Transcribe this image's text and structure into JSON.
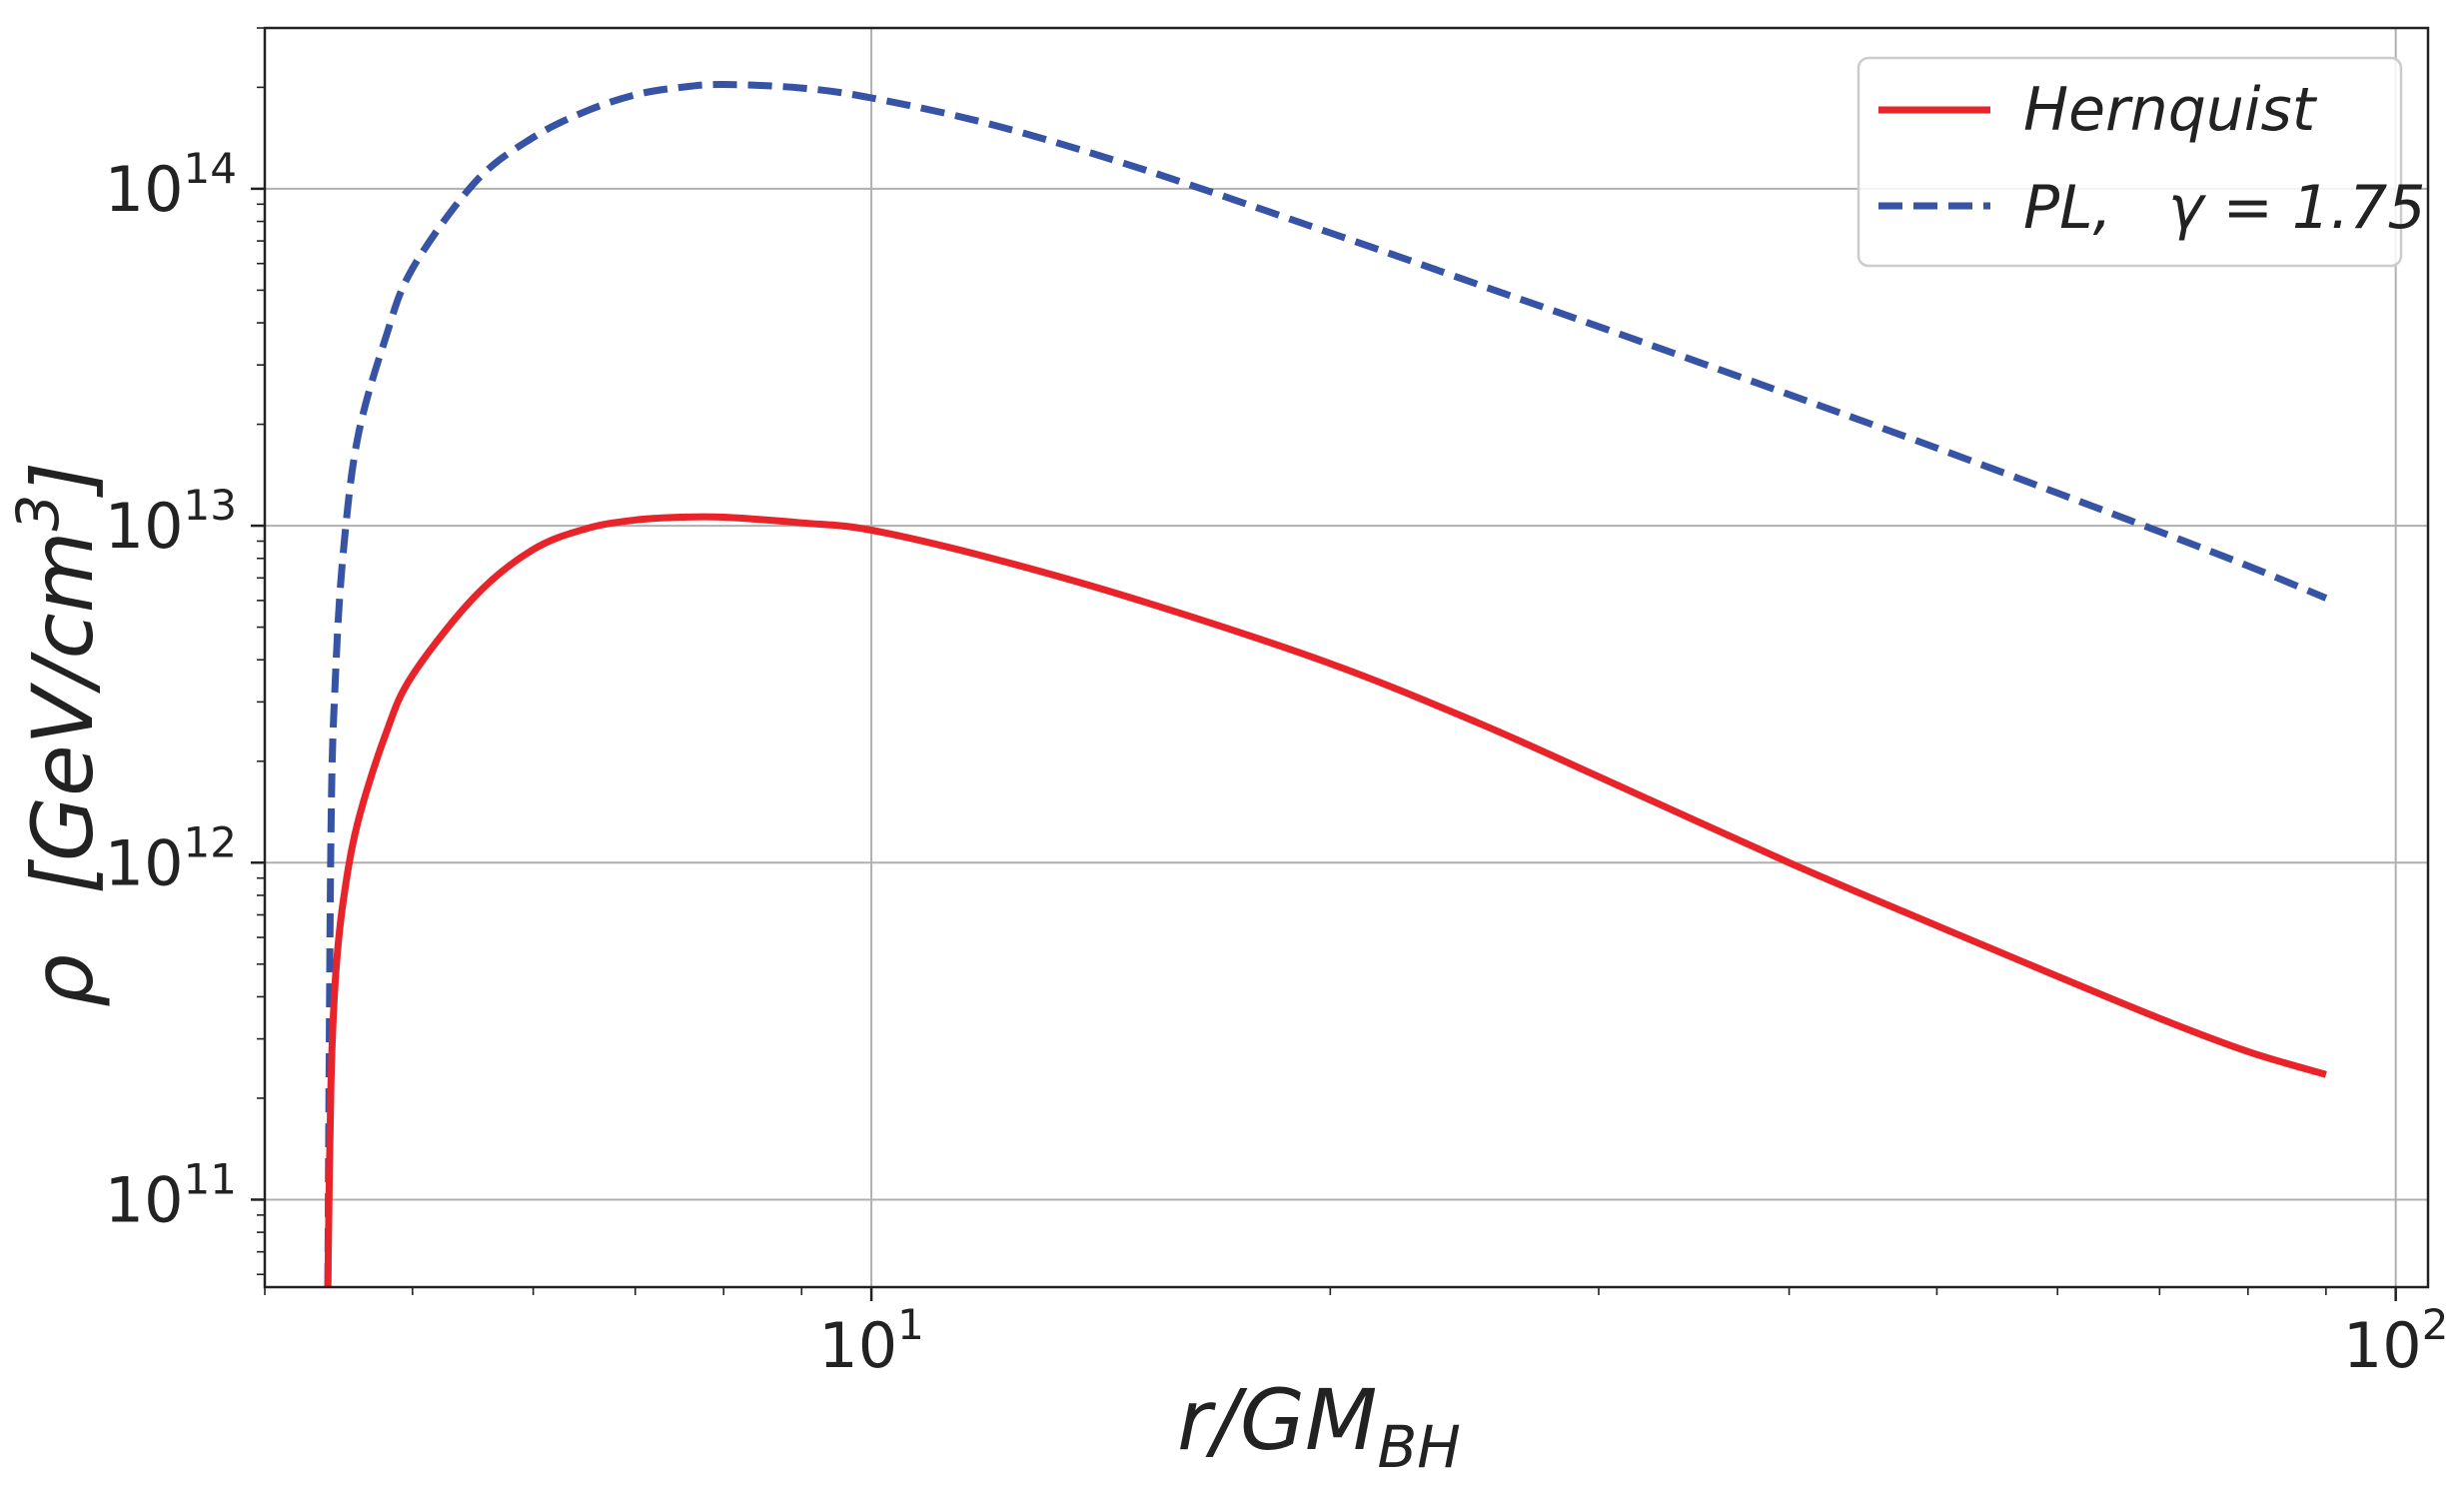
{
  "chart_data": {
    "type": "line",
    "xlabel": {
      "main": "r/GM",
      "sub": "BH"
    },
    "ylabel": {
      "symbol": "ρ",
      "units": "[GeV/cm",
      "units_exp": "3",
      "units_close": "]"
    },
    "xscale": "log",
    "yscale": "log",
    "xlim": [
      4.0,
      105
    ],
    "ylim": [
      55000000000.0,
      300000000000000.0
    ],
    "grid": true,
    "legend_position": "top-right",
    "x_ticks": [
      {
        "value": 10,
        "base": "10",
        "exp": "1"
      },
      {
        "value": 100,
        "base": "10",
        "exp": "2"
      }
    ],
    "y_ticks": [
      {
        "value": 100000000000.0,
        "base": "10",
        "exp": "11"
      },
      {
        "value": 1000000000000.0,
        "base": "10",
        "exp": "12"
      },
      {
        "value": 10000000000000.0,
        "base": "10",
        "exp": "13"
      },
      {
        "value": 100000000000000.0,
        "base": "10",
        "exp": "14"
      }
    ],
    "series": [
      {
        "name": "Hernquist",
        "color": "#e8232a",
        "dash": "solid",
        "x": [
          4.4,
          4.42,
          4.45,
          4.5,
          4.6,
          4.8,
          5.0,
          5.5,
          6.0,
          6.5,
          7.0,
          7.5,
          8.0,
          9.0,
          10,
          12,
          15,
          20,
          25,
          30,
          40,
          50,
          60,
          70,
          80,
          90
        ],
        "y": [
          55000000000.0,
          220000000000.0,
          450000000000.0,
          750000000000.0,
          1300000000000.0,
          2400000000000.0,
          3600000000000.0,
          6200000000000.0,
          8500000000000.0,
          9800000000000.0,
          10400000000000.0,
          10600000000000.0,
          10600000000000.0,
          10200000000000.0,
          9700000000000.0,
          8000000000000.0,
          6000000000000.0,
          3900000000000.0,
          2600000000000.0,
          1800000000000.0,
          1000000000000.0,
          650000000000.0,
          460000000000.0,
          345000000000.0,
          275000000000.0,
          235000000000.0
        ]
      },
      {
        "name": "PL,    γ = 1.75",
        "legend_label": {
          "name": "PL,",
          "gamma": "γ = 1.75"
        },
        "color": "#3653a5",
        "dash": "dashed",
        "x": [
          4.4,
          4.42,
          4.45,
          4.5,
          4.6,
          4.8,
          5.0,
          5.5,
          6.0,
          6.5,
          7.0,
          7.5,
          8.0,
          9.0,
          10,
          12,
          15,
          20,
          25,
          30,
          40,
          50,
          60,
          70,
          80,
          90
        ],
        "y": [
          55000000000.0,
          1200000000000.0,
          3500000000000.0,
          8000000000000.0,
          18000000000000.0,
          36000000000000.0,
          58000000000000.0,
          105000000000000.0,
          142000000000000.0,
          170000000000000.0,
          190000000000000.0,
          200000000000000.0,
          204000000000000.0,
          199000000000000.0,
          186000000000000.0,
          155000000000000.0,
          115000000000000.0,
          74000000000000.0,
          52000000000000.0,
          39000000000000.0,
          24500000000000.0,
          17000000000000.0,
          12500000000000.0,
          9600000000000.0,
          7600000000000.0,
          6100000000000.0
        ]
      }
    ]
  }
}
